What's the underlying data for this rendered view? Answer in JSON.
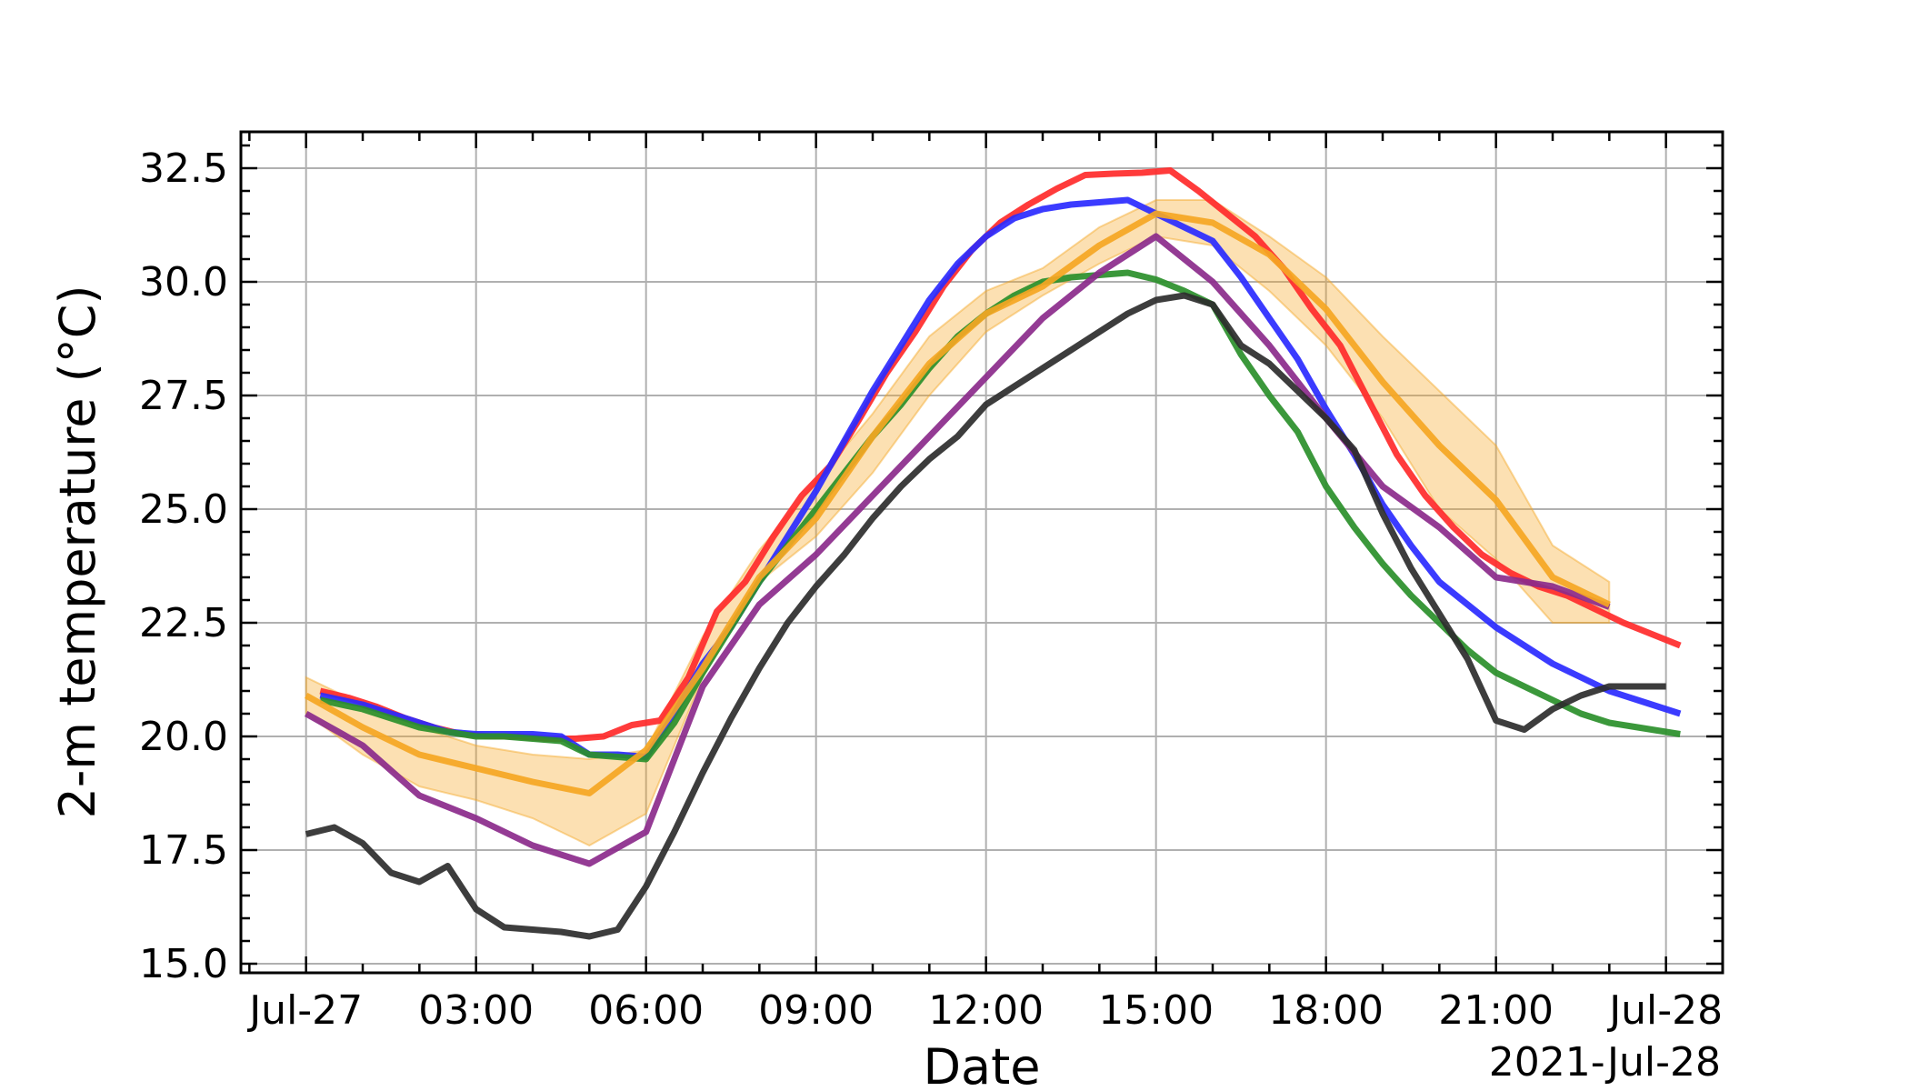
{
  "chart_data": {
    "type": "line",
    "title": "",
    "xlabel": "Date",
    "ylabel": "2-m temperature (°C)",
    "x_offset_label": "2021-Jul-28",
    "x_tick_labels": [
      "Jul-27",
      "03:00",
      "06:00",
      "09:00",
      "12:00",
      "15:00",
      "18:00",
      "21:00",
      "Jul-28"
    ],
    "x_tick_hours": [
      0,
      3,
      6,
      9,
      12,
      15,
      18,
      21,
      24
    ],
    "xlim_hours": [
      -1.15,
      25.0
    ],
    "ylim": [
      14.8,
      33.3
    ],
    "y_ticks": [
      15.0,
      17.5,
      20.0,
      22.5,
      25.0,
      27.5,
      30.0,
      32.5
    ],
    "y_tick_labels": [
      "15.0",
      "17.5",
      "20.0",
      "22.5",
      "25.0",
      "27.5",
      "30.0",
      "32.5"
    ],
    "grid": true,
    "legend": "none",
    "band": {
      "color": "#f5a623",
      "opacity": 0.35,
      "x": [
        0,
        1,
        2,
        3,
        4,
        5,
        6,
        7,
        8,
        9,
        10,
        11,
        12,
        13,
        14,
        15,
        16,
        17,
        18,
        19,
        20,
        21,
        22,
        23
      ],
      "upper": [
        21.3,
        20.7,
        20.2,
        19.8,
        19.6,
        19.5,
        19.7,
        22.2,
        24.1,
        25.6,
        27.1,
        28.8,
        29.8,
        30.3,
        31.2,
        31.8,
        31.8,
        31.0,
        30.1,
        28.8,
        27.6,
        26.4,
        24.2,
        23.4
      ],
      "lower": [
        20.5,
        19.6,
        18.9,
        18.6,
        18.2,
        17.6,
        18.3,
        21.3,
        23.4,
        24.4,
        25.8,
        27.5,
        28.9,
        29.7,
        30.4,
        31.0,
        30.8,
        29.8,
        28.6,
        27.0,
        25.0,
        23.9,
        22.5,
        22.5
      ]
    },
    "series": [
      {
        "color": "#ff2a2a",
        "x": [
          0.25,
          0.75,
          1.25,
          1.75,
          2.25,
          2.75,
          3.25,
          3.75,
          4.25,
          4.75,
          5.25,
          5.75,
          6.25,
          6.75,
          7.25,
          7.75,
          8.25,
          8.75,
          9.25,
          9.75,
          10.25,
          10.75,
          11.25,
          11.75,
          12.25,
          12.75,
          13.25,
          13.75,
          14.25,
          14.75,
          15.25,
          15.75,
          16.25,
          16.75,
          17.25,
          17.75,
          18.25,
          18.75,
          19.25,
          19.75,
          20.25,
          20.75,
          21.25,
          21.75,
          22.25,
          22.75,
          23.25,
          23.75,
          24.25
        ],
        "y": [
          21.0,
          20.85,
          20.65,
          20.4,
          20.2,
          20.05,
          20.0,
          20.0,
          19.95,
          19.95,
          20.0,
          20.25,
          20.35,
          21.3,
          22.75,
          23.4,
          24.4,
          25.3,
          25.95,
          26.95,
          28.0,
          28.9,
          29.9,
          30.7,
          31.3,
          31.7,
          32.05,
          32.35,
          32.38,
          32.4,
          32.45,
          32.0,
          31.5,
          31.0,
          30.3,
          29.4,
          28.6,
          27.4,
          26.2,
          25.3,
          24.6,
          24.0,
          23.6,
          23.3,
          23.1,
          22.8,
          22.5,
          22.25,
          22.0
        ]
      },
      {
        "color": "#2a2aff",
        "x": [
          0.25,
          1.0,
          1.5,
          2.0,
          2.5,
          3.0,
          3.5,
          4.0,
          4.5,
          5.0,
          5.5,
          6.0,
          6.5,
          7.0,
          7.5,
          8.0,
          8.5,
          9.0,
          9.5,
          10.0,
          10.5,
          11.0,
          11.5,
          12.0,
          12.5,
          13.0,
          13.5,
          14.0,
          14.5,
          15.0,
          15.5,
          16.0,
          16.5,
          17.0,
          17.5,
          18.0,
          18.5,
          19.0,
          19.5,
          20.0,
          20.5,
          21.0,
          21.5,
          22.0,
          22.5,
          23.0,
          23.5,
          24.0,
          24.25
        ],
        "y": [
          20.9,
          20.7,
          20.5,
          20.3,
          20.1,
          20.05,
          20.05,
          20.05,
          20.0,
          19.6,
          19.6,
          19.55,
          20.5,
          21.6,
          22.4,
          23.4,
          24.4,
          25.4,
          26.5,
          27.6,
          28.6,
          29.6,
          30.4,
          31.0,
          31.4,
          31.6,
          31.7,
          31.75,
          31.8,
          31.5,
          31.2,
          30.9,
          30.1,
          29.2,
          28.3,
          27.2,
          26.2,
          25.1,
          24.2,
          23.4,
          22.9,
          22.4,
          22.0,
          21.6,
          21.3,
          21.0,
          20.8,
          20.6,
          20.5
        ]
      },
      {
        "color": "#2a8f2a",
        "x": [
          0.25,
          1.0,
          2.0,
          3.0,
          3.5,
          4.0,
          4.5,
          5.0,
          5.5,
          6.0,
          6.5,
          7.0,
          7.5,
          8.0,
          8.5,
          9.0,
          9.5,
          10.0,
          10.5,
          11.0,
          11.5,
          12.0,
          12.5,
          13.0,
          13.5,
          14.0,
          14.5,
          15.0,
          15.5,
          16.0,
          16.5,
          17.0,
          17.5,
          18.0,
          18.5,
          19.0,
          19.5,
          20.0,
          20.5,
          21.0,
          21.5,
          22.0,
          22.5,
          23.0,
          23.5,
          24.0,
          24.25
        ],
        "y": [
          20.8,
          20.6,
          20.2,
          20.0,
          20.0,
          19.95,
          19.9,
          19.6,
          19.55,
          19.5,
          20.3,
          21.4,
          22.4,
          23.4,
          24.2,
          25.0,
          25.8,
          26.6,
          27.3,
          28.1,
          28.8,
          29.3,
          29.7,
          30.0,
          30.1,
          30.15,
          30.2,
          30.05,
          29.8,
          29.5,
          28.4,
          27.5,
          26.7,
          25.5,
          24.6,
          23.8,
          23.1,
          22.5,
          21.9,
          21.4,
          21.1,
          20.8,
          20.5,
          20.3,
          20.2,
          20.1,
          20.05
        ]
      },
      {
        "color": "#8b2a8b",
        "x": [
          0,
          1,
          2,
          3,
          4,
          5,
          6,
          6.5,
          7,
          8,
          9,
          10,
          11,
          12,
          13,
          14,
          15,
          16,
          17,
          18,
          19,
          20,
          21,
          22,
          23
        ],
        "y": [
          20.5,
          19.8,
          18.7,
          18.2,
          17.6,
          17.2,
          17.9,
          19.5,
          21.1,
          22.9,
          24.0,
          25.3,
          26.6,
          27.9,
          29.2,
          30.2,
          31.0,
          30.0,
          28.6,
          27.0,
          25.5,
          24.6,
          23.5,
          23.3,
          22.85
        ]
      },
      {
        "color": "#2d2d2d",
        "x": [
          0,
          0.5,
          1.0,
          1.5,
          2.0,
          2.5,
          3.0,
          3.5,
          4.0,
          4.5,
          5.0,
          5.5,
          6.0,
          6.5,
          7.0,
          7.5,
          8.0,
          8.5,
          9.0,
          9.5,
          10.0,
          10.5,
          11.0,
          11.5,
          12.0,
          12.5,
          13.0,
          13.5,
          14.0,
          14.5,
          15.0,
          15.5,
          16.0,
          16.5,
          17.0,
          17.5,
          18.0,
          18.5,
          19.0,
          19.5,
          20.0,
          20.5,
          21.0,
          21.5,
          22.0,
          22.5,
          23.0,
          23.5,
          24.0
        ],
        "y": [
          17.85,
          18.0,
          17.65,
          17.0,
          16.8,
          17.15,
          16.2,
          15.8,
          15.75,
          15.7,
          15.6,
          15.75,
          16.7,
          17.9,
          19.2,
          20.4,
          21.5,
          22.5,
          23.3,
          24.0,
          24.8,
          25.5,
          26.1,
          26.6,
          27.3,
          27.7,
          28.1,
          28.5,
          28.9,
          29.3,
          29.6,
          29.7,
          29.5,
          28.6,
          28.2,
          27.6,
          27.0,
          26.3,
          24.9,
          23.7,
          22.7,
          21.7,
          20.35,
          20.15,
          20.6,
          20.9,
          21.1,
          21.1,
          21.1
        ]
      },
      {
        "color": "#f5a623",
        "x": [
          0,
          1,
          2,
          3,
          4,
          5,
          6,
          7,
          8,
          9,
          10,
          11,
          12,
          13,
          14,
          15,
          16,
          17,
          18,
          19,
          20,
          21,
          22,
          23
        ],
        "y": [
          20.9,
          20.2,
          19.6,
          19.3,
          19.0,
          18.75,
          19.7,
          21.5,
          23.5,
          24.8,
          26.6,
          28.2,
          29.3,
          29.9,
          30.8,
          31.5,
          31.3,
          30.6,
          29.4,
          27.8,
          26.4,
          25.2,
          23.5,
          22.9
        ]
      }
    ]
  }
}
